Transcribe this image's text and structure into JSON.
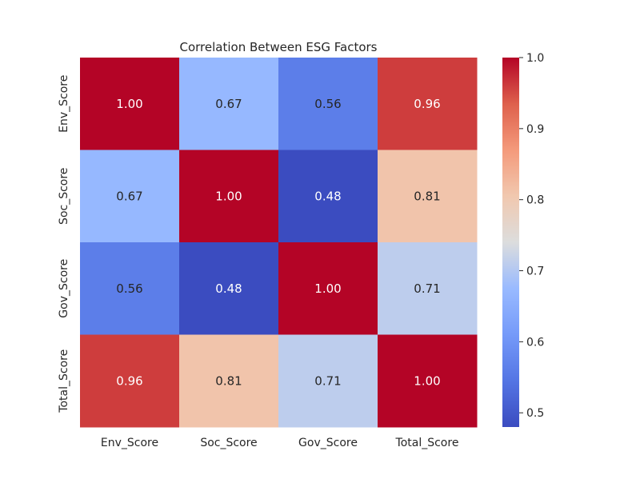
{
  "chart_data": {
    "type": "heatmap",
    "title": "Correlation Between ESG Factors",
    "x_labels": [
      "Env_Score",
      "Soc_Score",
      "Gov_Score",
      "Total_Score"
    ],
    "y_labels": [
      "Env_Score",
      "Soc_Score",
      "Gov_Score",
      "Total_Score"
    ],
    "values": [
      [
        1.0,
        0.67,
        0.56,
        0.96
      ],
      [
        0.67,
        1.0,
        0.48,
        0.81
      ],
      [
        0.56,
        0.48,
        1.0,
        0.71
      ],
      [
        0.96,
        0.81,
        0.71,
        1.0
      ]
    ],
    "value_format": "0.00",
    "colormap": "coolwarm",
    "color_range": [
      0.48,
      1.0
    ],
    "colorbar": {
      "ticks": [
        "0.5",
        "0.6",
        "0.7",
        "0.8",
        "0.9",
        "1.0"
      ],
      "placement": "right"
    },
    "grid": false
  }
}
